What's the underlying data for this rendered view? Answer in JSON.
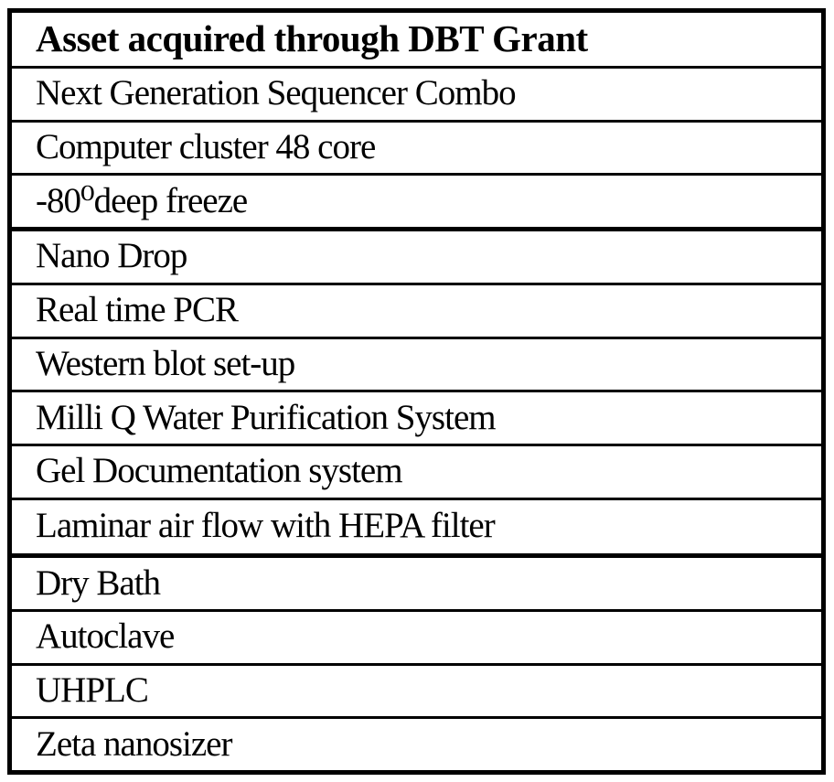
{
  "table": {
    "header": "Asset acquired through DBT Grant",
    "rows": [
      "Next Generation Sequencer Combo",
      "Computer cluster 48 core",
      "-80⁰deep freeze",
      "Nano Drop",
      "Real time PCR",
      "Western blot set-up",
      "Milli Q Water Purification System",
      "Gel Documentation system",
      "Laminar air flow with HEPA filter",
      "Dry Bath",
      "Autoclave",
      "UHPLC",
      "Zeta nanosizer"
    ]
  },
  "colors": {
    "border": "#000000",
    "text": "#000000",
    "background": "#ffffff"
  }
}
